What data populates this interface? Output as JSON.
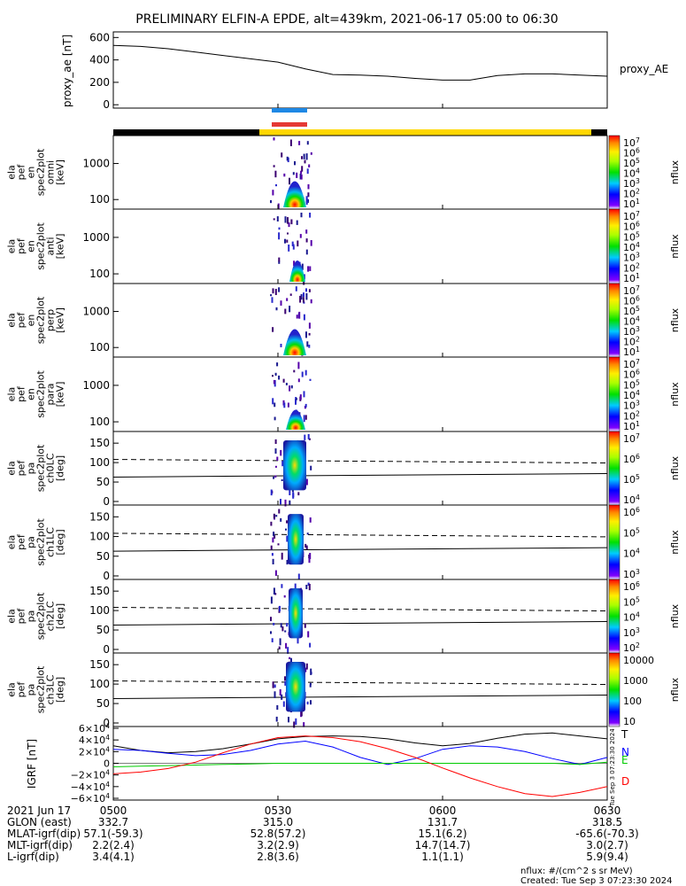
{
  "title": "PRELIMINARY ELFIN-A EPDE, alt=439km, 2021-06-17 05:00 to 06:30",
  "chart_data": [
    {
      "type": "line",
      "ylabel": "proxy_ae [nT]",
      "legend": "proxy_AE",
      "yticks": [
        "600",
        "400",
        "200",
        "0"
      ],
      "ylim": [
        -30,
        650
      ],
      "x": [
        0,
        5,
        10,
        15,
        20,
        25,
        30,
        35,
        40,
        45,
        50,
        55,
        60,
        65,
        70,
        75,
        80,
        85,
        90
      ],
      "values": [
        530,
        520,
        500,
        470,
        440,
        410,
        380,
        320,
        270,
        265,
        255,
        235,
        220,
        220,
        260,
        275,
        275,
        265,
        255
      ]
    },
    {
      "type": "heatmap",
      "ylabel": "ela pef en spec2plot omni [keV]",
      "yticks": [
        "1000",
        "100"
      ],
      "colorbar": {
        "label": "nflux",
        "ticks": [
          "10^7",
          "10^6",
          "10^5",
          "10^4",
          "10^3",
          "10^2",
          "10^1"
        ]
      }
    },
    {
      "type": "heatmap",
      "ylabel": "ela pef en spec2plot anti [keV]",
      "yticks": [
        "1000",
        "100"
      ],
      "colorbar": {
        "label": "nflux",
        "ticks": [
          "10^7",
          "10^6",
          "10^5",
          "10^4",
          "10^3",
          "10^2",
          "10^1"
        ]
      }
    },
    {
      "type": "heatmap",
      "ylabel": "ela pef en spec2plot perp [keV]",
      "yticks": [
        "1000",
        "100"
      ],
      "colorbar": {
        "label": "nflux",
        "ticks": [
          "10^7",
          "10^6",
          "10^5",
          "10^4",
          "10^3",
          "10^2",
          "10^1"
        ]
      }
    },
    {
      "type": "heatmap",
      "ylabel": "ela pef en spec2plot para [keV]",
      "yticks": [
        "1000",
        "100"
      ],
      "colorbar": {
        "label": "nflux",
        "ticks": [
          "10^7",
          "10^6",
          "10^5",
          "10^4",
          "10^3",
          "10^2",
          "10^1"
        ]
      }
    },
    {
      "type": "heatmap",
      "ylabel": "ela pef pa spec2plot ch0LC [deg]",
      "yticks": [
        "150",
        "100",
        "50",
        "0"
      ],
      "colorbar": {
        "label": "nflux",
        "ticks": [
          "10^7",
          "10^6",
          "10^5",
          "10^4"
        ]
      }
    },
    {
      "type": "heatmap",
      "ylabel": "ela pef pa spec2plot ch1LC [deg]",
      "yticks": [
        "150",
        "100",
        "50",
        "0"
      ],
      "colorbar": {
        "label": "nflux",
        "ticks": [
          "10^6",
          "10^5",
          "10^4",
          "10^3"
        ]
      }
    },
    {
      "type": "heatmap",
      "ylabel": "ela pef pa spec2plot ch2LC [deg]",
      "yticks": [
        "150",
        "100",
        "50",
        "0"
      ],
      "colorbar": {
        "label": "nflux",
        "ticks": [
          "10^6",
          "10^5",
          "10^4",
          "10^3",
          "10^2"
        ]
      }
    },
    {
      "type": "heatmap",
      "ylabel": "ela pef pa spec2plot ch3LC [deg]",
      "yticks": [
        "150",
        "100",
        "50",
        "0"
      ],
      "colorbar": {
        "label": "nflux",
        "ticks": [
          "10000",
          "1000",
          "100",
          "10"
        ]
      }
    },
    {
      "type": "line",
      "ylabel": "IGRF [nT]",
      "yticks": [
        "6×10^4",
        "4×10^4",
        "2×10^4",
        "0",
        "−2×10^4",
        "−4×10^4",
        "−6×10^4"
      ],
      "ylim": [
        -60000,
        60000
      ],
      "x": [
        0,
        5,
        10,
        15,
        20,
        25,
        30,
        35,
        40,
        45,
        50,
        55,
        60,
        65,
        70,
        75,
        80,
        85,
        90
      ],
      "series": [
        {
          "name": "T",
          "color": "#000000",
          "values": [
            30000,
            22000,
            18000,
            20000,
            25000,
            33000,
            42000,
            46000,
            47000,
            46000,
            42000,
            35000,
            30000,
            34000,
            43000,
            50000,
            52000,
            47000,
            42000
          ]
        },
        {
          "name": "N",
          "color": "#0000ff",
          "values": [
            24000,
            22000,
            17000,
            13000,
            15000,
            22000,
            33000,
            38000,
            28000,
            10000,
            -2000,
            8000,
            24000,
            30000,
            28000,
            20000,
            8000,
            -2000,
            10000
          ]
        },
        {
          "name": "E",
          "color": "#00cc00",
          "values": [
            -6000,
            -5000,
            -4000,
            -3000,
            -2000,
            -1000,
            0,
            0,
            0,
            0,
            0,
            0,
            0,
            0,
            0,
            0,
            0,
            -2000,
            2000
          ]
        },
        {
          "name": "D",
          "color": "#ff0000",
          "values": [
            -18000,
            -15000,
            -9000,
            2000,
            18000,
            33000,
            44000,
            47000,
            44000,
            37000,
            25000,
            10000,
            -8000,
            -25000,
            -40000,
            -52000,
            -57000,
            -50000,
            -40000
          ]
        }
      ]
    }
  ],
  "time_axis": {
    "row_labels": [
      "2021 Jun 17",
      "GLON (east)",
      "MLAT-igrf(dip)",
      "MLT-igrf(dip)",
      "L-igrf(dip)"
    ],
    "columns": [
      {
        "values": [
          "0500",
          "332.7",
          "57.1(-59.3)",
          "2.2(2.4)",
          "3.4(4.1)"
        ]
      },
      {
        "values": [
          "0530",
          "315.0",
          "52.8(57.2)",
          "3.2(2.9)",
          "2.8(3.6)"
        ]
      },
      {
        "values": [
          "0600",
          "131.7",
          "15.1(6.2)",
          "14.7(14.7)",
          "1.1(1.1)"
        ]
      },
      {
        "values": [
          "0630",
          "318.5",
          "-65.6(-70.3)",
          "3.0(2.7)",
          "5.9(9.4)"
        ]
      }
    ]
  },
  "footer": {
    "units": "nflux: #/(cm^2 s sr MeV)",
    "created": "Created: Tue Sep  3 07:23:30 2024",
    "side_stamp": "Tue Sep  3 07:23:30 2024"
  },
  "colors": {
    "bar_blue": "#1e88e5",
    "bar_red": "#e53935",
    "bar_black": "#000000",
    "bar_yellow": "#ffd700"
  }
}
